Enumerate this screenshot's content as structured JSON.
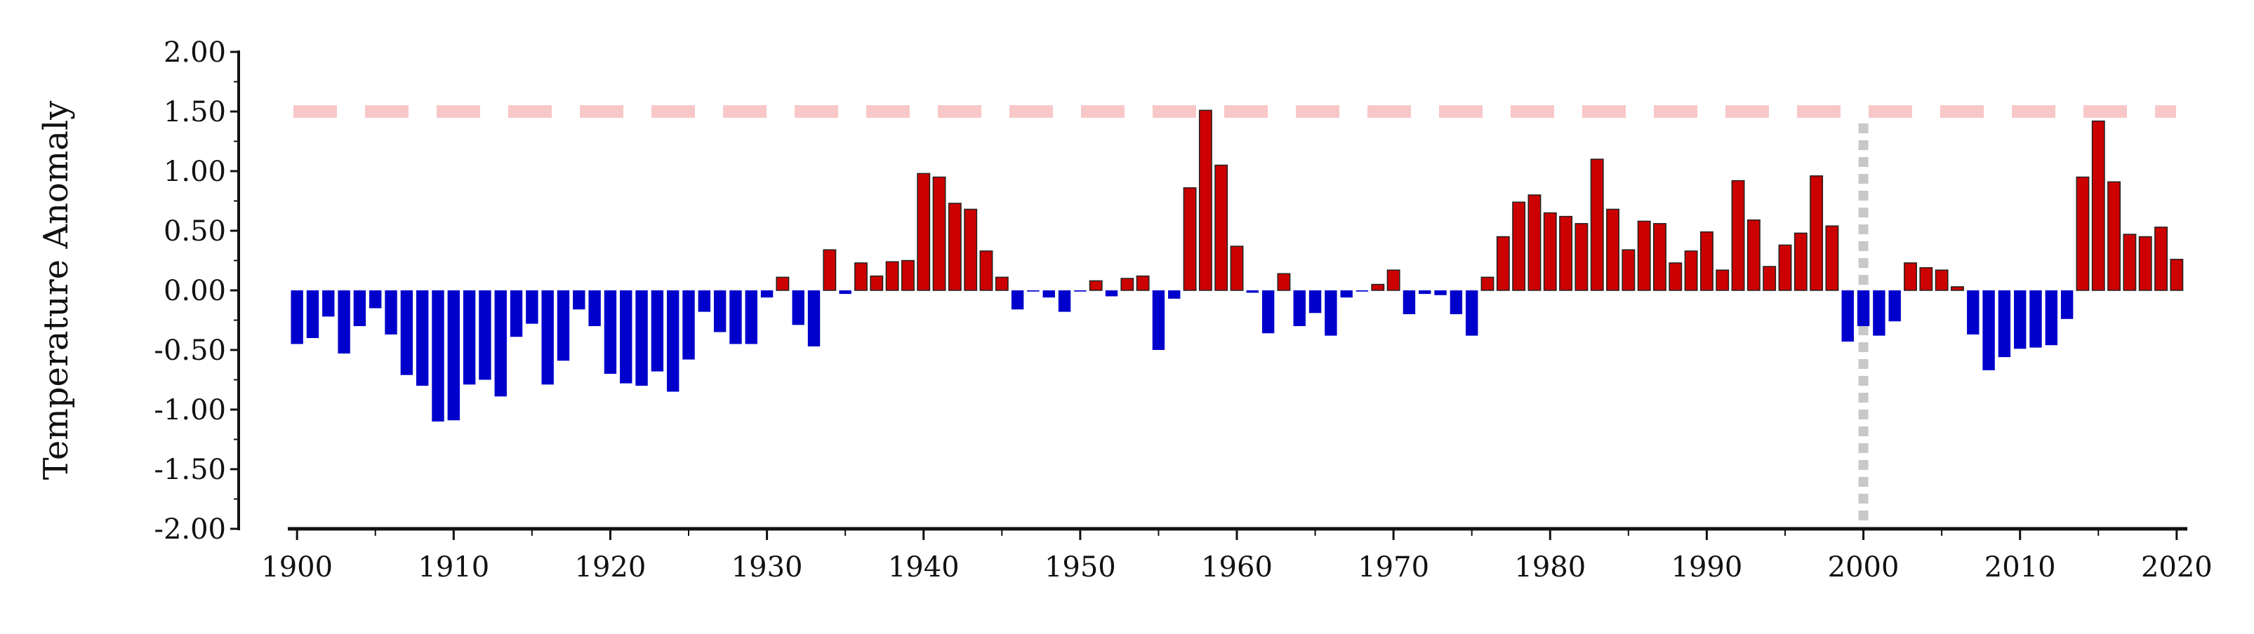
{
  "chart_data": {
    "type": "bar",
    "title": "",
    "xlabel": "",
    "ylabel": "Temperature Anomaly",
    "xlim": [
      1899.5,
      2020.5
    ],
    "ylim": [
      -2.0,
      2.0
    ],
    "yticks": [
      "2.00",
      "1.50",
      "1.00",
      "0.50",
      "0.00",
      "-0.50",
      "-1.00",
      "-1.50",
      "-2.00"
    ],
    "xticks": [
      "1900",
      "1910",
      "1920",
      "1930",
      "1940",
      "1950",
      "1960",
      "1970",
      "1980",
      "1990",
      "2000",
      "2010",
      "2020"
    ],
    "grid": false,
    "legend": "none",
    "colors": {
      "positive": "#cc0000",
      "negative": "#0000cc",
      "bar_outline": "#222222",
      "threshold_line": "#f8c8c8",
      "marker_line": "#c8c8c8"
    },
    "reference_lines": {
      "threshold_y": 1.5,
      "marker_x": 2000
    },
    "series": [
      {
        "x": [
          1900,
          1901,
          1902,
          1903,
          1904,
          1905,
          1906,
          1907,
          1908,
          1909,
          1910,
          1911,
          1912,
          1913,
          1914,
          1915,
          1916,
          1917,
          1918,
          1919,
          1920,
          1921,
          1922,
          1923,
          1924,
          1925,
          1926,
          1927,
          1928,
          1929,
          1930,
          1931,
          1932,
          1933,
          1934,
          1935,
          1936,
          1937,
          1938,
          1939,
          1940,
          1941,
          1942,
          1943,
          1944,
          1945,
          1946,
          1947,
          1948,
          1949,
          1950,
          1951,
          1952,
          1953,
          1954,
          1955,
          1956,
          1957,
          1958,
          1959,
          1960,
          1961,
          1962,
          1963,
          1964,
          1965,
          1966,
          1967,
          1968,
          1969,
          1970,
          1971,
          1972,
          1973,
          1974,
          1975,
          1976,
          1977,
          1978,
          1979,
          1980,
          1981,
          1982,
          1983,
          1984,
          1985,
          1986,
          1987,
          1988,
          1989,
          1990,
          1991,
          1992,
          1993,
          1994,
          1995,
          1996,
          1997,
          1998,
          1999,
          2000,
          2001,
          2002,
          2003,
          2004,
          2005,
          2006,
          2007,
          2008,
          2009,
          2010,
          2011,
          2012,
          2013,
          2014,
          2015,
          2016,
          2017,
          2018,
          2019,
          2020
        ],
        "values": [
          -0.45,
          -0.4,
          -0.22,
          -0.53,
          -0.3,
          -0.15,
          -0.37,
          -0.71,
          -0.8,
          -1.1,
          -1.09,
          -0.79,
          -0.75,
          -0.89,
          -0.39,
          -0.28,
          -0.79,
          -0.59,
          -0.16,
          -0.3,
          -0.7,
          -0.78,
          -0.8,
          -0.68,
          -0.85,
          -0.58,
          -0.18,
          -0.35,
          -0.45,
          -0.45,
          -0.06,
          0.11,
          -0.29,
          -0.47,
          0.34,
          -0.03,
          0.23,
          0.12,
          0.24,
          0.25,
          0.98,
          0.95,
          0.73,
          0.68,
          0.33,
          0.11,
          -0.16,
          -0.01,
          -0.06,
          -0.18,
          -0.01,
          0.08,
          -0.05,
          0.1,
          0.12,
          -0.5,
          -0.07,
          0.86,
          1.51,
          1.05,
          0.37,
          -0.02,
          -0.36,
          0.14,
          -0.3,
          -0.19,
          -0.38,
          -0.06,
          -0.01,
          0.05,
          0.17,
          -0.2,
          -0.03,
          -0.04,
          -0.2,
          -0.38,
          0.11,
          0.45,
          0.74,
          0.8,
          0.65,
          0.62,
          0.56,
          1.1,
          0.68,
          0.34,
          0.58,
          0.56,
          0.23,
          0.33,
          0.49,
          0.17,
          0.92,
          0.59,
          0.2,
          0.38,
          0.48,
          0.96,
          0.54,
          -0.43,
          -0.3,
          -0.38,
          -0.26,
          0.23,
          0.19,
          0.17,
          0.03,
          -0.37,
          -0.67,
          -0.56,
          -0.49,
          -0.48,
          -0.46,
          -0.24,
          0.95,
          1.42,
          0.91,
          0.47,
          0.45,
          0.53,
          0.26
        ]
      }
    ]
  }
}
